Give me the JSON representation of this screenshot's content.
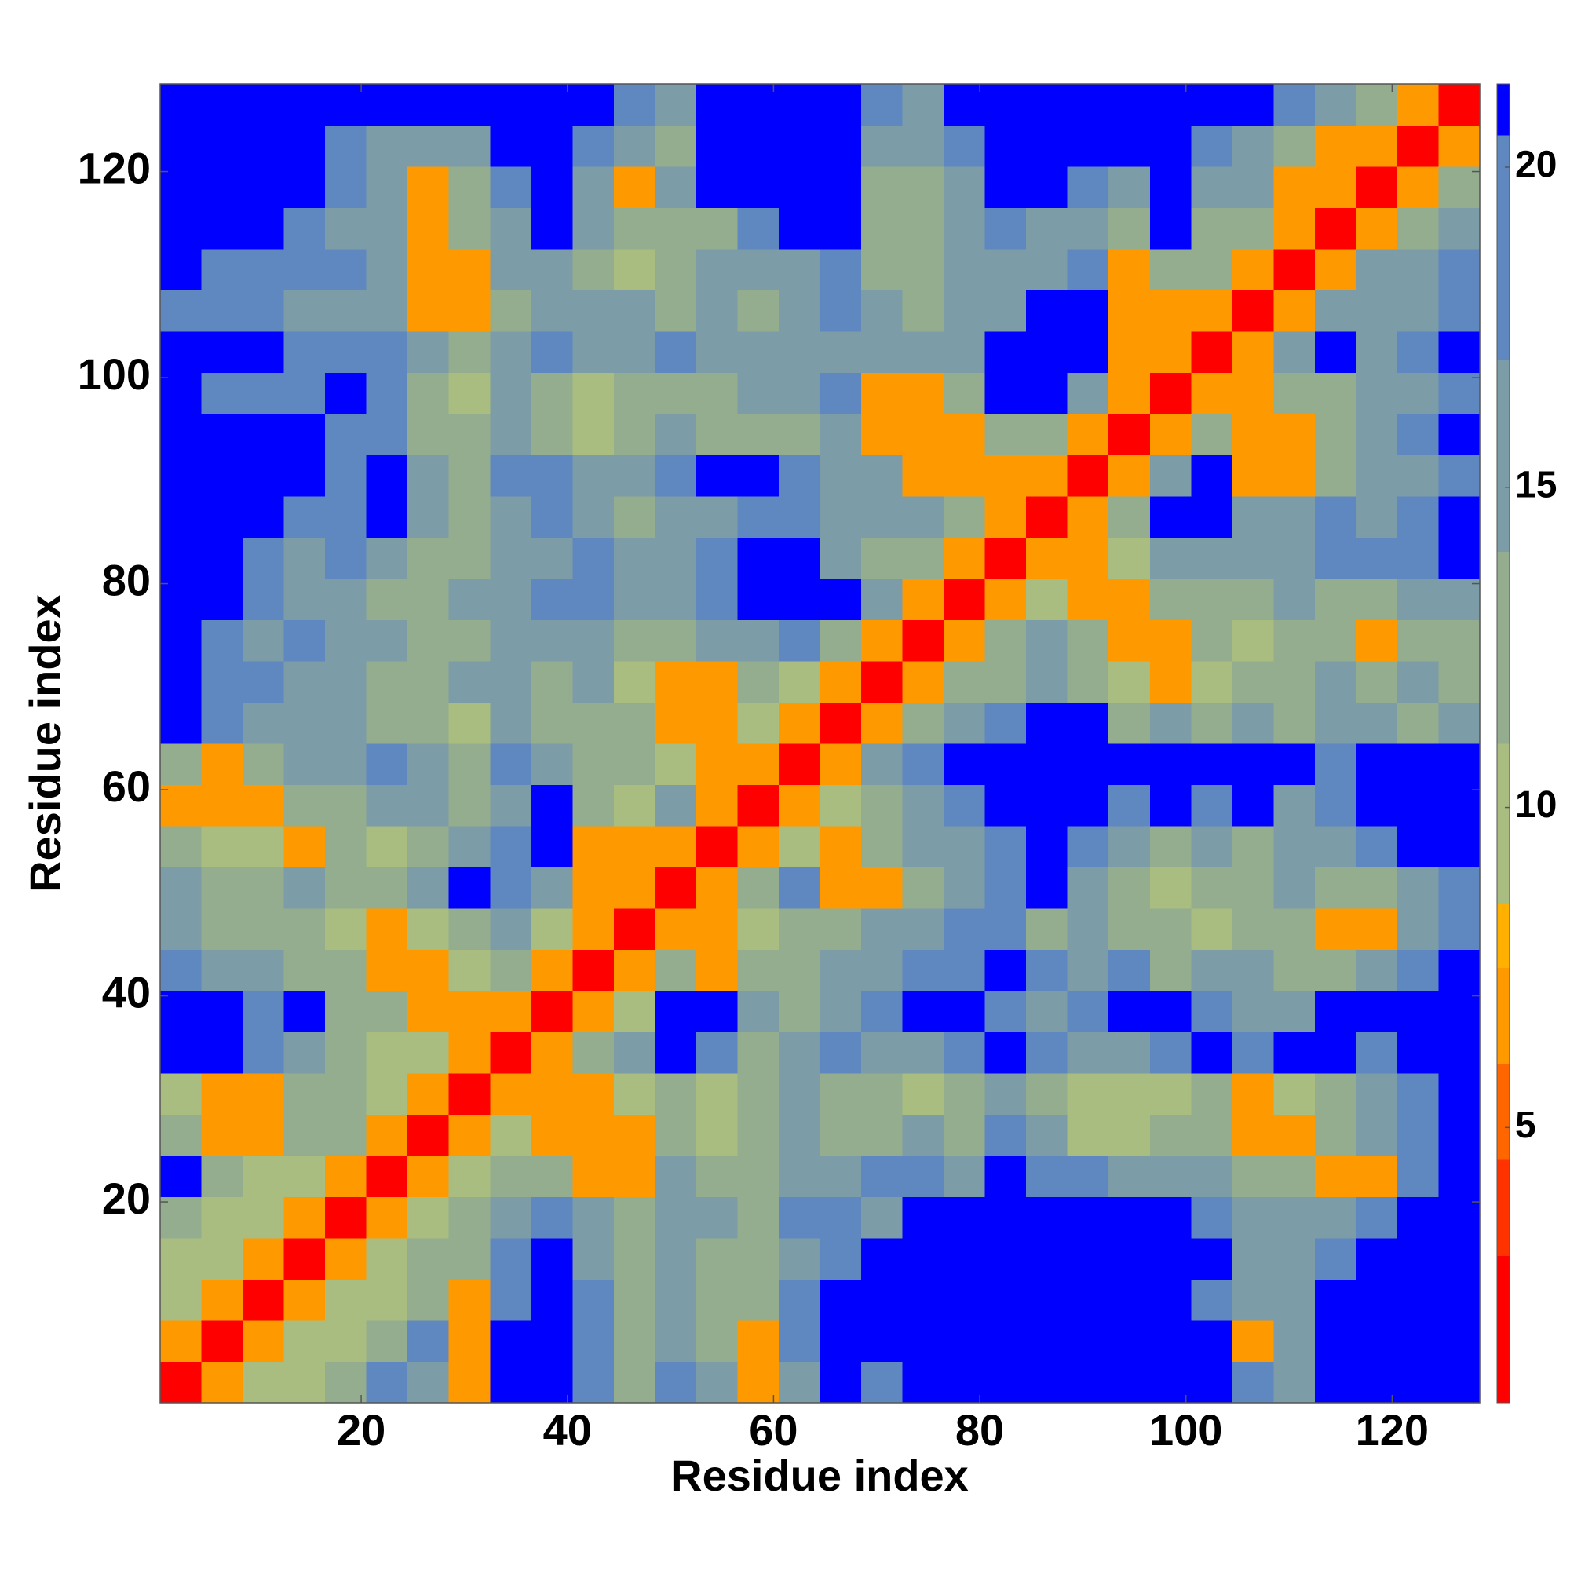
{
  "chart_data": {
    "type": "heatmap",
    "x_label": "Residue index",
    "y_label": "Residue index",
    "xlim": [
      0.5,
      128.5
    ],
    "ylim": [
      0.5,
      128.5
    ],
    "xticks": [
      20,
      40,
      60,
      80,
      100,
      120
    ],
    "yticks": [
      20,
      40,
      60,
      80,
      100,
      120
    ],
    "x": [
      2.5,
      6.5,
      10.5,
      14.5,
      18.5,
      22.5,
      26.5,
      30.5,
      34.5,
      38.5,
      42.5,
      46.5,
      50.5,
      54.5,
      58.5,
      62.5,
      66.5,
      70.5,
      74.5,
      78.5,
      82.5,
      86.5,
      90.5,
      94.5,
      98.5,
      102.5,
      106.5,
      110.5,
      114.5,
      118.5,
      122.5,
      126.5
    ],
    "y": [
      2.5,
      6.5,
      10.5,
      14.5,
      18.5,
      22.5,
      26.5,
      30.5,
      34.5,
      38.5,
      42.5,
      46.5,
      50.5,
      54.5,
      58.5,
      62.5,
      66.5,
      70.5,
      74.5,
      78.5,
      82.5,
      86.5,
      90.5,
      94.5,
      98.5,
      102.5,
      106.5,
      110.5,
      114.5,
      118.5,
      122.5,
      126.5
    ],
    "z": [
      [
        2,
        6,
        10,
        10,
        13,
        19,
        16,
        6,
        21,
        21,
        19,
        13,
        19,
        16,
        6,
        16,
        21,
        19,
        21,
        21,
        21,
        21,
        21,
        21,
        21,
        21,
        19,
        16,
        21,
        21,
        21,
        21
      ],
      [
        6,
        2,
        6,
        10,
        10,
        13,
        19,
        6,
        21,
        21,
        19,
        13,
        16,
        13,
        6,
        19,
        21,
        21,
        21,
        21,
        21,
        21,
        21,
        21,
        21,
        21,
        6,
        16,
        21,
        21,
        21,
        21
      ],
      [
        10,
        6,
        2,
        6,
        10,
        10,
        13,
        6,
        19,
        21,
        19,
        13,
        16,
        13,
        13,
        19,
        21,
        21,
        21,
        21,
        21,
        21,
        21,
        21,
        21,
        19,
        16,
        16,
        21,
        21,
        21,
        21
      ],
      [
        10,
        10,
        6,
        2,
        6,
        10,
        13,
        13,
        19,
        21,
        16,
        13,
        16,
        13,
        13,
        16,
        19,
        21,
        21,
        21,
        21,
        21,
        21,
        21,
        21,
        21,
        16,
        16,
        19,
        21,
        21,
        21
      ],
      [
        13,
        10,
        10,
        6,
        2,
        6,
        10,
        13,
        16,
        19,
        16,
        13,
        16,
        16,
        13,
        19,
        19,
        16,
        21,
        21,
        21,
        21,
        21,
        21,
        21,
        19,
        16,
        16,
        16,
        19,
        21,
        21
      ],
      [
        21,
        13,
        10,
        10,
        6,
        2,
        6,
        10,
        13,
        13,
        6,
        6,
        16,
        13,
        13,
        16,
        16,
        19,
        19,
        16,
        21,
        19,
        19,
        16,
        16,
        16,
        13,
        13,
        6,
        6,
        19,
        21
      ],
      [
        13,
        6,
        6,
        13,
        13,
        6,
        2,
        6,
        10,
        6,
        6,
        6,
        13,
        10,
        13,
        16,
        13,
        13,
        16,
        13,
        19,
        16,
        10,
        10,
        13,
        13,
        6,
        6,
        13,
        16,
        19,
        21
      ],
      [
        10,
        6,
        6,
        13,
        13,
        10,
        6,
        2,
        6,
        6,
        6,
        10,
        13,
        10,
        13,
        16,
        13,
        13,
        10,
        13,
        16,
        13,
        10,
        10,
        10,
        13,
        6,
        10,
        13,
        16,
        19,
        21
      ],
      [
        21,
        21,
        19,
        16,
        13,
        10,
        10,
        6,
        2,
        6,
        13,
        16,
        21,
        19,
        13,
        16,
        19,
        16,
        16,
        19,
        21,
        19,
        16,
        16,
        19,
        21,
        19,
        21,
        21,
        19,
        21,
        21
      ],
      [
        21,
        21,
        19,
        21,
        13,
        13,
        6,
        6,
        6,
        2,
        6,
        10,
        21,
        21,
        16,
        13,
        16,
        19,
        21,
        21,
        19,
        16,
        19,
        21,
        21,
        19,
        16,
        16,
        21,
        21,
        21,
        21
      ],
      [
        19,
        16,
        16,
        13,
        13,
        6,
        6,
        10,
        13,
        6,
        2,
        6,
        13,
        6,
        13,
        13,
        16,
        16,
        19,
        19,
        21,
        19,
        16,
        19,
        13,
        16,
        16,
        13,
        13,
        16,
        19,
        21
      ],
      [
        16,
        13,
        13,
        13,
        10,
        6,
        10,
        13,
        16,
        10,
        6,
        2,
        6,
        6,
        10,
        13,
        13,
        16,
        16,
        19,
        19,
        13,
        16,
        13,
        13,
        10,
        13,
        13,
        6,
        6,
        16,
        19
      ],
      [
        16,
        13,
        13,
        16,
        13,
        13,
        16,
        21,
        19,
        16,
        6,
        6,
        2,
        6,
        13,
        19,
        6,
        6,
        13,
        16,
        19,
        21,
        16,
        13,
        10,
        13,
        13,
        16,
        13,
        13,
        16,
        19
      ],
      [
        13,
        10,
        10,
        6,
        13,
        10,
        13,
        16,
        19,
        21,
        6,
        6,
        6,
        2,
        6,
        10,
        6,
        13,
        16,
        16,
        19,
        21,
        19,
        16,
        13,
        16,
        13,
        16,
        16,
        19,
        21,
        21
      ],
      [
        6,
        6,
        6,
        13,
        13,
        16,
        16,
        13,
        16,
        21,
        13,
        10,
        16,
        6,
        2,
        6,
        10,
        13,
        16,
        19,
        21,
        21,
        21,
        19,
        21,
        19,
        21,
        16,
        19,
        21,
        21,
        21
      ],
      [
        13,
        6,
        13,
        16,
        16,
        19,
        16,
        13,
        19,
        16,
        13,
        13,
        10,
        6,
        6,
        2,
        6,
        16,
        19,
        21,
        21,
        21,
        21,
        21,
        21,
        21,
        21,
        21,
        19,
        21,
        21,
        21
      ],
      [
        21,
        19,
        16,
        16,
        16,
        13,
        13,
        10,
        16,
        13,
        13,
        13,
        6,
        6,
        10,
        6,
        2,
        6,
        13,
        16,
        19,
        21,
        21,
        13,
        16,
        13,
        16,
        13,
        16,
        16,
        13,
        16
      ],
      [
        21,
        19,
        19,
        16,
        16,
        13,
        13,
        16,
        16,
        13,
        16,
        10,
        6,
        6,
        13,
        10,
        6,
        2,
        6,
        13,
        13,
        16,
        13,
        10,
        6,
        10,
        13,
        13,
        16,
        13,
        16,
        13
      ],
      [
        21,
        19,
        16,
        19,
        16,
        16,
        13,
        13,
        16,
        16,
        16,
        13,
        13,
        16,
        16,
        19,
        13,
        6,
        2,
        6,
        13,
        16,
        13,
        6,
        6,
        13,
        10,
        13,
        13,
        6,
        13,
        13
      ],
      [
        21,
        21,
        19,
        16,
        16,
        13,
        13,
        16,
        16,
        19,
        19,
        16,
        16,
        19,
        21,
        21,
        21,
        16,
        6,
        2,
        6,
        10,
        6,
        6,
        13,
        13,
        13,
        16,
        13,
        13,
        16,
        16
      ],
      [
        21,
        21,
        19,
        16,
        19,
        16,
        13,
        13,
        16,
        16,
        19,
        16,
        16,
        19,
        21,
        21,
        16,
        13,
        13,
        6,
        2,
        6,
        6,
        10,
        16,
        16,
        16,
        16,
        19,
        19,
        19,
        21
      ],
      [
        21,
        21,
        21,
        19,
        19,
        21,
        16,
        13,
        16,
        19,
        16,
        13,
        16,
        16,
        19,
        19,
        16,
        16,
        16,
        13,
        6,
        2,
        6,
        13,
        21,
        21,
        16,
        16,
        19,
        16,
        19,
        21
      ],
      [
        21,
        21,
        21,
        21,
        19,
        21,
        16,
        13,
        19,
        19,
        16,
        16,
        19,
        21,
        21,
        19,
        16,
        16,
        6,
        6,
        6,
        6,
        2,
        6,
        16,
        21,
        6,
        6,
        13,
        16,
        16,
        19
      ],
      [
        21,
        21,
        21,
        21,
        19,
        19,
        13,
        13,
        16,
        13,
        10,
        13,
        16,
        13,
        13,
        13,
        16,
        6,
        6,
        6,
        13,
        13,
        6,
        2,
        6,
        13,
        6,
        6,
        13,
        16,
        19,
        21
      ],
      [
        21,
        19,
        19,
        19,
        21,
        19,
        13,
        10,
        16,
        13,
        10,
        13,
        13,
        13,
        16,
        16,
        19,
        6,
        6,
        13,
        21,
        21,
        16,
        6,
        2,
        6,
        6,
        13,
        13,
        16,
        16,
        19
      ],
      [
        21,
        21,
        21,
        19,
        19,
        19,
        16,
        13,
        16,
        19,
        16,
        16,
        19,
        16,
        16,
        16,
        16,
        16,
        16,
        16,
        21,
        21,
        21,
        6,
        6,
        2,
        6,
        16,
        21,
        16,
        19,
        21
      ],
      [
        19,
        19,
        19,
        16,
        16,
        16,
        6,
        6,
        13,
        16,
        16,
        16,
        13,
        16,
        13,
        16,
        19,
        16,
        13,
        16,
        16,
        21,
        21,
        6,
        6,
        6,
        2,
        6,
        16,
        16,
        16,
        19
      ],
      [
        21,
        19,
        19,
        19,
        19,
        16,
        6,
        6,
        16,
        16,
        13,
        10,
        13,
        16,
        16,
        16,
        19,
        13,
        13,
        16,
        16,
        16,
        19,
        6,
        13,
        13,
        6,
        2,
        6,
        16,
        16,
        19
      ],
      [
        21,
        21,
        21,
        19,
        16,
        16,
        6,
        13,
        16,
        21,
        16,
        13,
        13,
        13,
        19,
        21,
        21,
        13,
        13,
        16,
        19,
        16,
        16,
        13,
        21,
        13,
        13,
        6,
        2,
        6,
        13,
        16
      ],
      [
        21,
        21,
        21,
        21,
        19,
        16,
        6,
        13,
        19,
        21,
        16,
        6,
        16,
        21,
        21,
        21,
        21,
        13,
        13,
        16,
        21,
        21,
        19,
        16,
        21,
        16,
        16,
        6,
        6,
        2,
        6,
        13
      ],
      [
        21,
        21,
        21,
        21,
        19,
        16,
        16,
        16,
        21,
        21,
        19,
        16,
        13,
        21,
        21,
        21,
        21,
        16,
        16,
        19,
        21,
        21,
        21,
        21,
        21,
        19,
        16,
        13,
        6,
        6,
        2,
        6
      ],
      [
        21,
        21,
        21,
        21,
        21,
        21,
        21,
        21,
        21,
        21,
        21,
        19,
        16,
        21,
        21,
        21,
        21,
        19,
        16,
        21,
        21,
        21,
        21,
        21,
        21,
        21,
        21,
        19,
        16,
        13,
        6,
        2
      ]
    ],
    "colorbar": {
      "levels": [
        0.7,
        3,
        4.5,
        6,
        7.5,
        8.5,
        11,
        14,
        17,
        20.5,
        21.3
      ],
      "colors": [
        "#ff0000",
        "#ff3300",
        "#ff6600",
        "#ff9900",
        "#ffb000",
        "#a9bd80",
        "#93ad8e",
        "#7c9ca8",
        "#6088c0",
        "#0000ff"
      ],
      "ticks": [
        5,
        10,
        15,
        20
      ]
    }
  }
}
